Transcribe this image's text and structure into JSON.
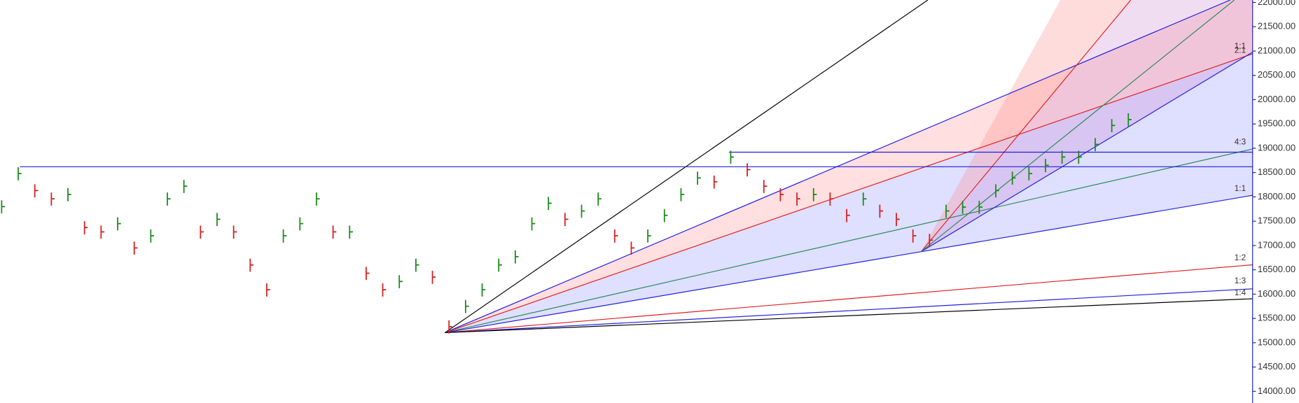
{
  "chart_data": {
    "type": "ohlc",
    "series": {
      "high": [
        17930,
        18610,
        18260,
        18090,
        18180,
        17500,
        17410,
        17580,
        17080,
        17330,
        18090,
        18350,
        17410,
        17670,
        17410,
        16730,
        16220,
        17330,
        17580,
        18090,
        17410,
        17410,
        16560,
        16220,
        16390,
        16730,
        16480,
        15460,
        15880,
        16220,
        16730,
        16900,
        17580,
        18000,
        17670,
        17840,
        18090,
        17330,
        17080,
        17330,
        17750,
        18180,
        18520,
        18440,
        18950,
        18690,
        18350,
        18180,
        18090,
        18180,
        18090,
        17750,
        18090,
        17840,
        17670,
        17330,
        17240,
        17840,
        17920,
        17920,
        18260,
        18520,
        18610,
        18780,
        18950,
        18950,
        19210,
        19600,
        19720
      ],
      "low": [
        17660,
        18340,
        17990,
        17820,
        17910,
        17230,
        17140,
        17310,
        16810,
        17060,
        17820,
        18080,
        17140,
        17400,
        17140,
        16460,
        15950,
        17060,
        17310,
        17820,
        17140,
        17140,
        16290,
        15950,
        16120,
        16460,
        16210,
        15190,
        15610,
        15950,
        16460,
        16630,
        17310,
        17730,
        17400,
        17570,
        17820,
        17060,
        16810,
        17060,
        17480,
        17910,
        18250,
        18170,
        18680,
        18420,
        18080,
        17910,
        17820,
        17910,
        17820,
        17480,
        17820,
        17570,
        17400,
        17060,
        16970,
        17570,
        17650,
        17650,
        17990,
        18250,
        18340,
        18510,
        18680,
        18680,
        18940,
        19330,
        19450
      ],
      "close": [
        17800,
        18480,
        18130,
        17960,
        18050,
        17370,
        17280,
        17450,
        16950,
        17200,
        17960,
        18220,
        17280,
        17540,
        17280,
        16600,
        16090,
        17200,
        17450,
        17960,
        17280,
        17280,
        16430,
        16090,
        16260,
        16600,
        16350,
        15330,
        15750,
        16090,
        16600,
        16770,
        17450,
        17870,
        17540,
        17710,
        17960,
        17200,
        16950,
        17200,
        17620,
        18050,
        18390,
        18310,
        18820,
        18560,
        18220,
        18050,
        17960,
        18050,
        17960,
        17620,
        17960,
        17710,
        17540,
        17200,
        17110,
        17710,
        17790,
        17790,
        18130,
        18390,
        18480,
        18650,
        18820,
        18820,
        19080,
        19470,
        19590
      ]
    },
    "up_color": "#1a8a1a",
    "down_color": "#d42020",
    "ylim": [
      13760,
      22050
    ],
    "yticks": [
      {
        "value": 14000,
        "label": "14000.00"
      },
      {
        "value": 14500,
        "label": "14500.00"
      },
      {
        "value": 15000,
        "label": "15000.00"
      },
      {
        "value": 15500,
        "label": "15500.00"
      },
      {
        "value": 16000,
        "label": "16000.00"
      },
      {
        "value": 16500,
        "label": "16500.00"
      },
      {
        "value": 17000,
        "label": "17000.00"
      },
      {
        "value": 17500,
        "label": "17500.00"
      },
      {
        "value": 18000,
        "label": "18000.00"
      },
      {
        "value": 18500,
        "label": "18500.00"
      },
      {
        "value": 19000,
        "label": "19000.00"
      },
      {
        "value": 19500,
        "label": "19500.00"
      },
      {
        "value": 20000,
        "label": "20000.00"
      },
      {
        "value": 20500,
        "label": "20500.00"
      },
      {
        "value": 21000,
        "label": "21000.00"
      },
      {
        "value": 21500,
        "label": "21500.00"
      },
      {
        "value": 22000,
        "label": "22000.00"
      }
    ],
    "levels": [
      18620,
      18920
    ],
    "fan_labels": [
      "1:1",
      "2:1",
      "4:3",
      "1:1",
      "1:2",
      "1:3",
      "1:4"
    ]
  }
}
